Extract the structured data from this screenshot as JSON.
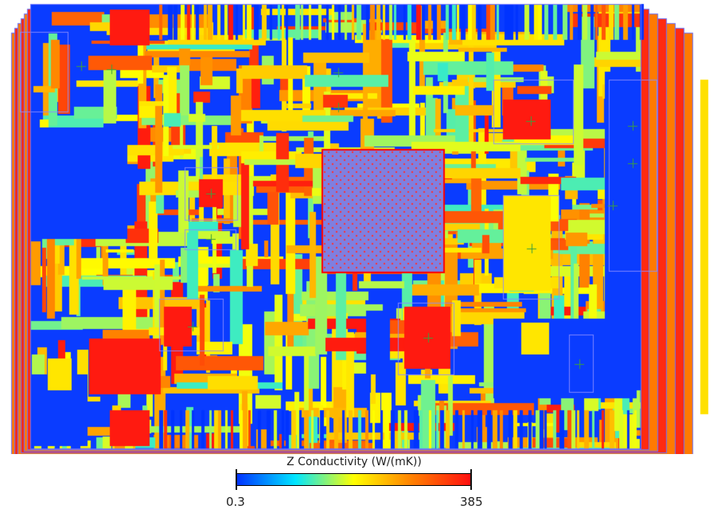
{
  "map": {
    "quantity": "Z Conductivity",
    "board_background_color": "#0a3cff",
    "chip_color": "#7f7fe0"
  },
  "colorbar": {
    "title": "Z Conductivity (W/(mK))",
    "min_label": "0.3",
    "max_label": "385",
    "min": 0.3,
    "max": 385,
    "colormap": "jet",
    "stops": [
      "#0033ff",
      "#00e6ff",
      "#ffff00",
      "#ff8000",
      "#ff1010"
    ]
  }
}
